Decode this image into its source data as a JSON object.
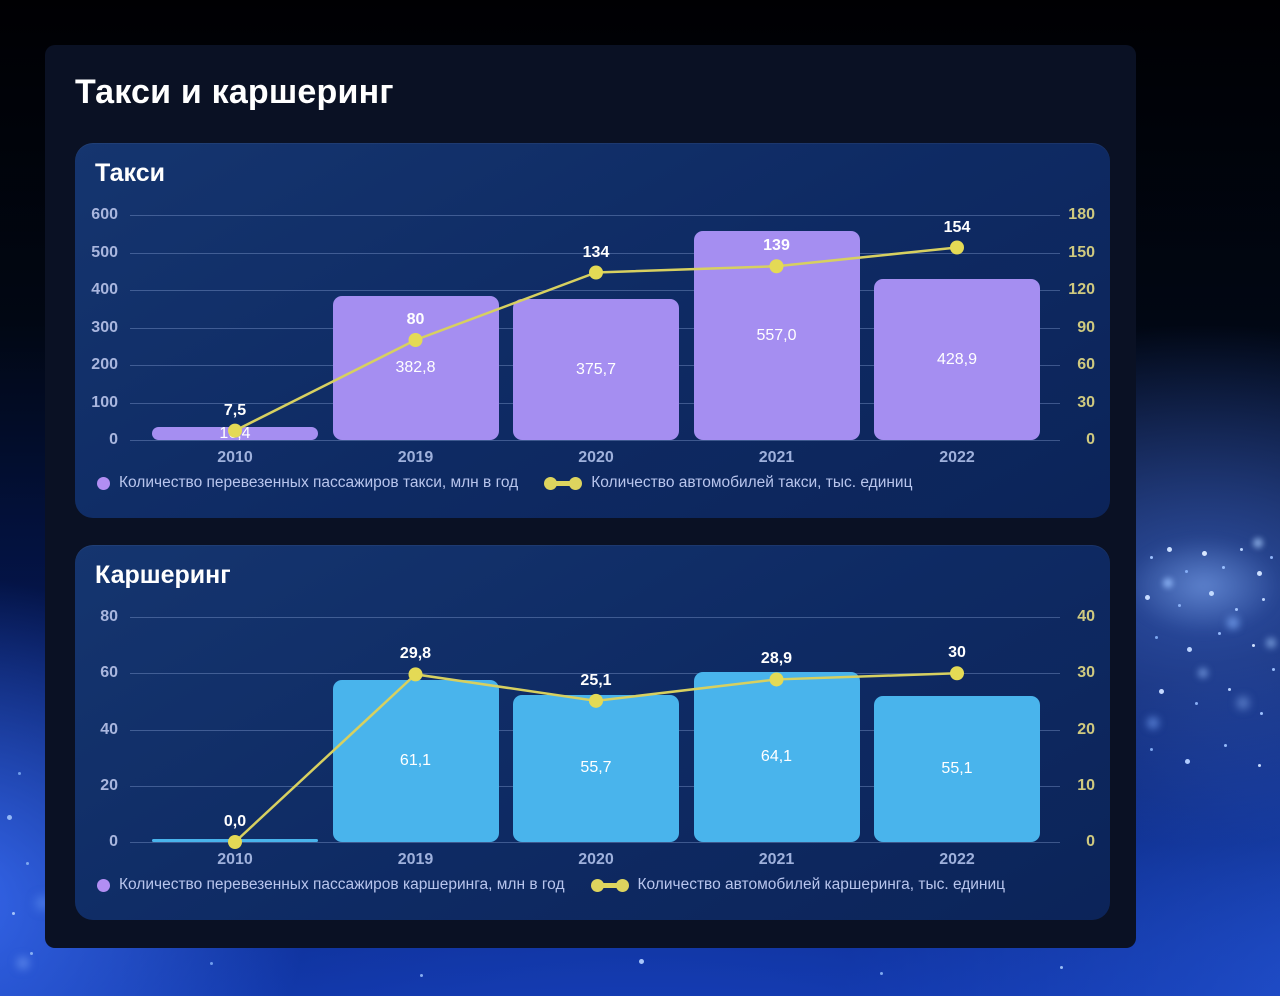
{
  "page_title": "Такси и каршеринг",
  "theme": {
    "panel_bg": "#0a1124",
    "card_bg_top": "#15356f",
    "card_bg_bottom": "#0c2459",
    "left_axis_label_color": "#a9b6de",
    "right_axis_label_color": "#cfc97f",
    "category_label_color": "#9fb1dc",
    "value_label_color": "#ffffff",
    "gridline_color": "rgba(164,190,238,0.32)",
    "legend_text_color": "#b8c5ed"
  },
  "chart_data": [
    {
      "type": "bar+line",
      "title": "Такси",
      "categories": [
        "2010",
        "2019",
        "2020",
        "2021",
        "2022"
      ],
      "series": [
        {
          "name": "Количество перевезенных пассажиров такси, млн в год",
          "type": "bar",
          "axis": "left",
          "values": [
            16.4,
            382.8,
            375.7,
            557.0,
            428.9
          ],
          "labels": [
            "16,4",
            "382,8",
            "375,7",
            "557,0",
            "428,9"
          ],
          "color": "#a58ef1",
          "legend_marker_color": "#b28ef3"
        },
        {
          "name": "Количество автомобилей такси, тыс. единиц",
          "type": "line",
          "axis": "right",
          "values": [
            7.5,
            80,
            134,
            139,
            154
          ],
          "labels": [
            "7,5",
            "80",
            "134",
            "139",
            "154"
          ],
          "color": "#d7d060",
          "point_color": "#e4da55",
          "legend_marker_color": "#ddd45e"
        }
      ],
      "left_axis": {
        "ticks": [
          "600",
          "500",
          "400",
          "300",
          "200",
          "100",
          "0"
        ],
        "min": 0,
        "max": 600
      },
      "right_axis": {
        "ticks": [
          "180",
          "150",
          "120",
          "90",
          "60",
          "30",
          "0"
        ],
        "min": 0,
        "max": 180
      },
      "bar_scale_max": 600,
      "grid": true,
      "legend_position": "bottom"
    },
    {
      "type": "bar+line",
      "title": "Каршеринг",
      "categories": [
        "2010",
        "2019",
        "2020",
        "2021",
        "2022"
      ],
      "series": [
        {
          "name": "Количество перевезенных пассажиров каршеринга, млн в год",
          "type": "bar",
          "axis": "left",
          "values": [
            0,
            61.1,
            55.7,
            64.1,
            55.1
          ],
          "labels": [
            "",
            "61,1",
            "55,7",
            "64,1",
            "55,1"
          ],
          "color": "#49b4ec",
          "legend_marker_color": "#b28ef3"
        },
        {
          "name": "Количество автомобилей каршеринга, тыс. единиц",
          "type": "line",
          "axis": "right",
          "values": [
            0.0,
            29.8,
            25.1,
            28.9,
            30
          ],
          "labels": [
            "0,0",
            "29,8",
            "25,1",
            "28,9",
            "30"
          ],
          "color": "#d7d060",
          "point_color": "#e4da55",
          "legend_marker_color": "#ddd45e"
        }
      ],
      "left_axis": {
        "ticks": [
          "80",
          "60",
          "40",
          "20",
          "0"
        ],
        "min": 0,
        "max": 80
      },
      "right_axis": {
        "ticks": [
          "40",
          "30",
          "20",
          "10",
          "0"
        ],
        "min": 0,
        "max": 40
      },
      "bar_scale_max": 85,
      "grid": true,
      "legend_position": "bottom"
    }
  ]
}
